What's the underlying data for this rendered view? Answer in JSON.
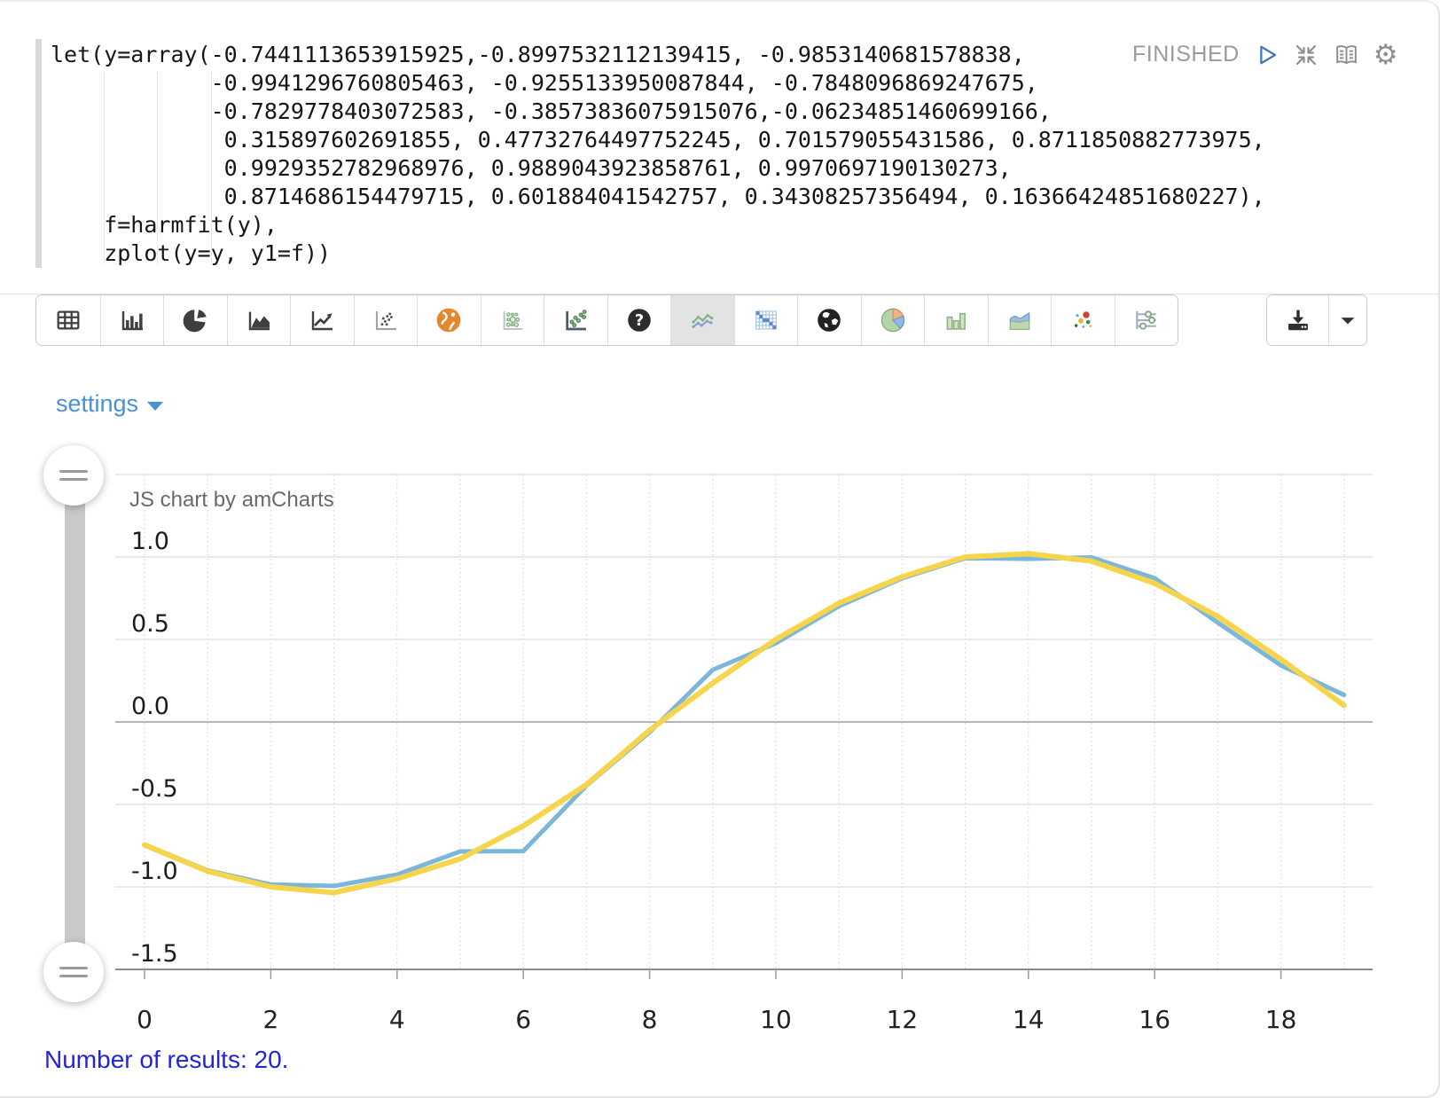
{
  "code": {
    "text": "let(y=array(-0.7441113653915925,-0.8997532112139415, -0.9853140681578838,\n            -0.9941296760805463, -0.9255133950087844, -0.7848096869247675,\n            -0.7829778403072583, -0.38573836075915076,-0.06234851460699166,\n             0.315897602691855, 0.47732764497752245, 0.701579055431586, 0.8711850882773975,\n             0.9929352782968976, 0.9889043923858761, 0.9970697190130273,\n             0.8714686154479715, 0.601884041542757, 0.34308257356494, 0.16366424851680227),\n    f=harmfit(y),\n    zplot(y=y, y1=f))"
  },
  "status": {
    "label": "FINISHED"
  },
  "toolbar": {
    "chart_types": [
      "table",
      "bar-chart",
      "pie-chart",
      "area-chart",
      "line-chart",
      "scatter-plot",
      "map",
      "bubble-chart",
      "scatter-green",
      "help",
      "spline-chart",
      "heatmap",
      "globe",
      "pie-colored",
      "column-chart",
      "stacked-area",
      "scatter-colored",
      "range-sliders"
    ],
    "selected_index": 10
  },
  "settings": {
    "label": "settings"
  },
  "chart_data": {
    "type": "line",
    "title": "JS chart by amCharts",
    "x": [
      0,
      1,
      2,
      3,
      4,
      5,
      6,
      7,
      8,
      9,
      10,
      11,
      12,
      13,
      14,
      15,
      16,
      17,
      18,
      19
    ],
    "series": [
      {
        "name": "y",
        "color": "#7cb7da",
        "stroke_width": 5,
        "values": [
          -0.7441113653915925,
          -0.8997532112139415,
          -0.9853140681578838,
          -0.9941296760805463,
          -0.9255133950087844,
          -0.7848096869247675,
          -0.7829778403072583,
          -0.38573836075915074,
          -0.06234851460699166,
          0.315897602691855,
          0.47732764497752245,
          0.701579055431586,
          0.8711850882773975,
          0.9929352782968976,
          0.9889043923858761,
          0.9970697190130273,
          0.8714686154479715,
          0.601884041542757,
          0.34308257356494,
          0.16366424851680228
        ]
      },
      {
        "name": "y1",
        "color": "#f6d44b",
        "stroke_width": 6,
        "values": [
          -0.745,
          -0.905,
          -1.0,
          -1.035,
          -0.95,
          -0.83,
          -0.63,
          -0.38,
          -0.05,
          0.235,
          0.5,
          0.72,
          0.88,
          1.0,
          1.02,
          0.975,
          0.84,
          0.64,
          0.38,
          0.1
        ]
      }
    ],
    "ylim": [
      -1.5,
      1.5
    ],
    "yticks": [
      {
        "label": "1.0",
        "value": 1.0
      },
      {
        "label": "0.5",
        "value": 0.5
      },
      {
        "label": "0.0",
        "value": 0.0
      },
      {
        "label": "-0.5",
        "value": -0.5
      },
      {
        "label": "-1.0",
        "value": -1.0
      },
      {
        "label": "-1.5",
        "value": -1.5
      }
    ],
    "xticks": [
      0,
      2,
      4,
      6,
      8,
      10,
      12,
      14,
      16,
      18
    ],
    "grid": true,
    "legend": false
  },
  "footer": {
    "results_text": "Number of results: 20."
  }
}
